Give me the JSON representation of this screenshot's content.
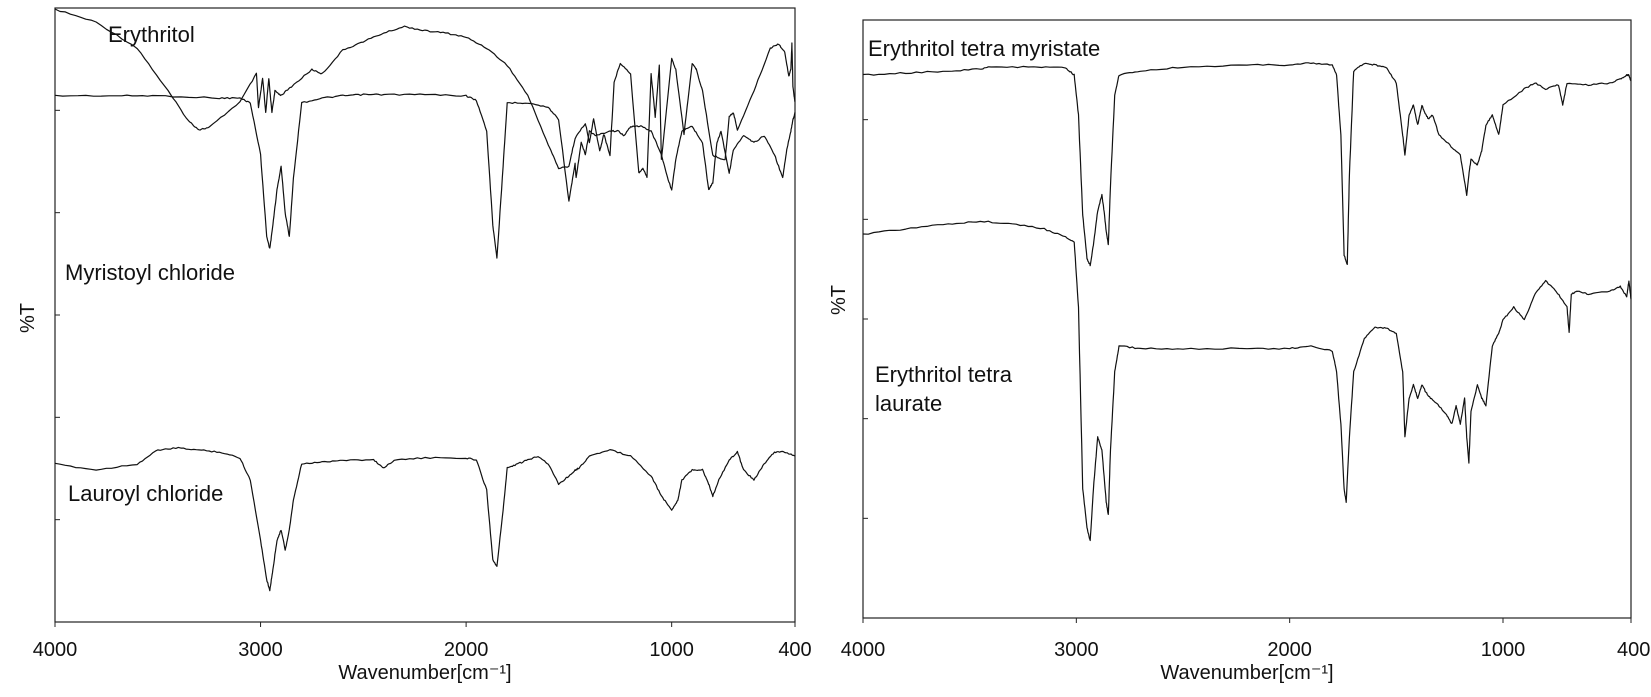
{
  "chart_data": [
    {
      "type": "line",
      "xlabel": "Wavenumber[cm⁻¹]",
      "ylabel": "%T",
      "xlim": [
        4000,
        400
      ],
      "x_reversed": true,
      "xticks": [
        4000,
        3000,
        2000,
        1000,
        400
      ],
      "grid": false,
      "series": [
        {
          "name": "Erythritol",
          "x": [
            4000,
            3800,
            3600,
            3450,
            3350,
            3300,
            3250,
            3100,
            3020,
            3010,
            2990,
            2975,
            2960,
            2945,
            2930,
            2900,
            2850,
            2750,
            2700,
            2600,
            2500,
            2400,
            2300,
            2200,
            2100,
            2000,
            1900,
            1800,
            1700,
            1600,
            1550,
            1500,
            1470,
            1420,
            1400,
            1380,
            1350,
            1330,
            1300,
            1280,
            1250,
            1200,
            1160,
            1140,
            1120,
            1100,
            1080,
            1060,
            1050,
            1000,
            980,
            940,
            900,
            880,
            850,
            800,
            740,
            720,
            700,
            680,
            600,
            520,
            480,
            450,
            430,
            420,
            415,
            410,
            405,
            400
          ],
          "y": [
            98,
            92,
            80,
            60,
            46,
            42,
            43,
            55,
            68,
            52,
            66,
            50,
            66,
            50,
            60,
            58,
            62,
            70,
            68,
            79,
            83,
            87,
            90,
            88,
            87,
            85,
            80,
            72,
            58,
            35,
            24,
            25,
            38,
            45,
            36,
            47,
            32,
            40,
            30,
            64,
            73,
            68,
            22,
            24,
            20,
            68,
            48,
            72,
            28,
            75,
            70,
            40,
            73,
            70,
            60,
            30,
            28,
            48,
            50,
            42,
            60,
            80,
            82,
            78,
            67,
            70,
            82,
            62,
            58,
            55
          ]
        },
        {
          "name": "Myristoyl chloride",
          "x": [
            4000,
            3700,
            3500,
            3200,
            3100,
            3050,
            3000,
            2970,
            2955,
            2940,
            2920,
            2900,
            2880,
            2860,
            2840,
            2800,
            2700,
            2600,
            2500,
            2400,
            2200,
            2000,
            1950,
            1900,
            1870,
            1850,
            1820,
            1800,
            1700,
            1600,
            1550,
            1500,
            1470,
            1465,
            1440,
            1420,
            1400,
            1370,
            1300,
            1260,
            1230,
            1200,
            1150,
            1100,
            1050,
            1020,
            1000,
            980,
            950,
            900,
            850,
            820,
            800,
            780,
            760,
            720,
            700,
            650,
            600,
            550,
            500,
            460,
            440,
            420,
            410,
            405,
            400
          ],
          "y": [
            55,
            55,
            55,
            54,
            54,
            52,
            30,
            -5,
            -10,
            0,
            15,
            25,
            5,
            -5,
            20,
            52,
            54,
            55,
            55.5,
            55.5,
            55.5,
            55,
            53,
            40,
            0,
            -14,
            25,
            52,
            52,
            50,
            45,
            10,
            26,
            20,
            35,
            30,
            40,
            38,
            40,
            40,
            38,
            42,
            42,
            40,
            30,
            20,
            15,
            28,
            40,
            42,
            35,
            15,
            18,
            35,
            40,
            22,
            32,
            38,
            35,
            38,
            30,
            20,
            32,
            40,
            45,
            46,
            48
          ]
        },
        {
          "name": "Lauroyl chloride",
          "x": [
            4000,
            3800,
            3600,
            3500,
            3400,
            3300,
            3200,
            3100,
            3050,
            3000,
            2970,
            2955,
            2940,
            2920,
            2900,
            2880,
            2860,
            2840,
            2800,
            2700,
            2600,
            2450,
            2400,
            2350,
            2200,
            2000,
            1950,
            1900,
            1870,
            1850,
            1820,
            1800,
            1750,
            1700,
            1650,
            1600,
            1550,
            1500,
            1470,
            1450,
            1400,
            1300,
            1200,
            1100,
            1050,
            1000,
            970,
            950,
            900,
            850,
            820,
            800,
            770,
            720,
            680,
            650,
            600,
            550,
            500,
            450,
            400
          ],
          "y": [
            -12,
            -15,
            -12,
            -5,
            -4,
            -5,
            -6,
            -9,
            -20,
            -50,
            -70,
            -75,
            -65,
            -50,
            -45,
            -55,
            -45,
            -30,
            -12,
            -11,
            -10,
            -10,
            -14,
            -10,
            -9,
            -9,
            -10,
            -25,
            -60,
            -63,
            -35,
            -14,
            -12,
            -10,
            -8,
            -12,
            -22,
            -18,
            -15,
            -14,
            -8,
            -5,
            -8,
            -18,
            -28,
            -35,
            -30,
            -20,
            -15,
            -15,
            -22,
            -28,
            -20,
            -10,
            -6,
            -15,
            -20,
            -12,
            -6,
            -6,
            -8
          ]
        }
      ],
      "annotations": [
        "Erythritol",
        "Myristoyl chloride",
        "Lauroyl chloride"
      ]
    },
    {
      "type": "line",
      "xlabel": "Wavenumber[cm⁻¹]",
      "ylabel": "%T",
      "xlim": [
        4000,
        400
      ],
      "x_reversed": true,
      "xticks": [
        4000,
        3000,
        2000,
        1000,
        400
      ],
      "grid": false,
      "series": [
        {
          "name": "Erythritol tetra myristate",
          "x": [
            4000,
            3800,
            3600,
            3450,
            3400,
            3200,
            3050,
            3010,
            2990,
            2970,
            2950,
            2935,
            2920,
            2900,
            2880,
            2870,
            2860,
            2850,
            2840,
            2820,
            2800,
            2700,
            2500,
            2200,
            2000,
            1900,
            1800,
            1780,
            1760,
            1745,
            1730,
            1720,
            1700,
            1650,
            1600,
            1550,
            1500,
            1470,
            1460,
            1440,
            1420,
            1400,
            1380,
            1370,
            1350,
            1330,
            1300,
            1250,
            1200,
            1170,
            1160,
            1150,
            1120,
            1100,
            1080,
            1050,
            1020,
            1000,
            900,
            850,
            800,
            740,
            720,
            700,
            600,
            500,
            450,
            420,
            410,
            400
          ],
          "y": [
            80,
            81,
            82,
            83,
            84,
            84,
            83.5,
            80,
            60,
            10,
            -12,
            -15,
            -5,
            12,
            20,
            12,
            2,
            -5,
            25,
            70,
            80,
            82,
            84,
            85,
            85,
            86,
            85,
            80,
            50,
            -10,
            -15,
            30,
            82,
            86,
            85,
            84,
            76,
            50,
            40,
            60,
            65,
            55,
            65,
            62,
            58,
            60,
            50,
            45,
            40,
            20,
            30,
            38,
            35,
            42,
            55,
            60,
            50,
            65,
            73,
            76,
            73,
            75,
            65,
            76,
            75,
            76,
            78,
            80,
            80,
            77
          ]
        },
        {
          "name": "Erythritol tetra laurate",
          "x": [
            4000,
            3800,
            3600,
            3450,
            3300,
            3150,
            3050,
            3010,
            2990,
            2970,
            2950,
            2935,
            2920,
            2900,
            2880,
            2860,
            2850,
            2840,
            2820,
            2800,
            2700,
            2500,
            2200,
            2000,
            1900,
            1800,
            1780,
            1760,
            1745,
            1735,
            1720,
            1700,
            1650,
            1600,
            1550,
            1500,
            1470,
            1460,
            1440,
            1420,
            1400,
            1380,
            1360,
            1340,
            1300,
            1260,
            1240,
            1220,
            1200,
            1180,
            1170,
            1160,
            1150,
            1120,
            1100,
            1080,
            1050,
            1020,
            1000,
            950,
            900,
            850,
            800,
            750,
            700,
            690,
            680,
            650,
            600,
            500,
            450,
            420,
            410,
            400
          ],
          "y": [
            58,
            60,
            62,
            63,
            62,
            60,
            57,
            55,
            30,
            -40,
            -55,
            -60,
            -40,
            -20,
            -25,
            -45,
            -50,
            -25,
            5,
            15,
            14,
            14,
            14,
            14,
            15,
            13,
            5,
            -15,
            -40,
            -45,
            -20,
            5,
            18,
            22,
            22,
            20,
            5,
            -20,
            -5,
            0,
            -5,
            0,
            -3,
            -5,
            -8,
            -12,
            -15,
            -8,
            -15,
            -5,
            -20,
            -30,
            -10,
            0,
            -5,
            -8,
            15,
            20,
            25,
            30,
            25,
            35,
            40,
            36,
            30,
            20,
            35,
            36,
            35,
            36,
            38,
            34,
            40,
            33
          ]
        }
      ],
      "annotations": [
        "Erythritol tetra myristate",
        "Erythritol tetra\nlaurate"
      ]
    }
  ],
  "panels": [
    {
      "labels": [
        "Erythritol",
        "Myristoyl chloride",
        "Lauroyl chloride"
      ]
    },
    {
      "labels": [
        "Erythritol tetra myristate",
        "Erythritol tetra",
        "laurate"
      ]
    }
  ]
}
